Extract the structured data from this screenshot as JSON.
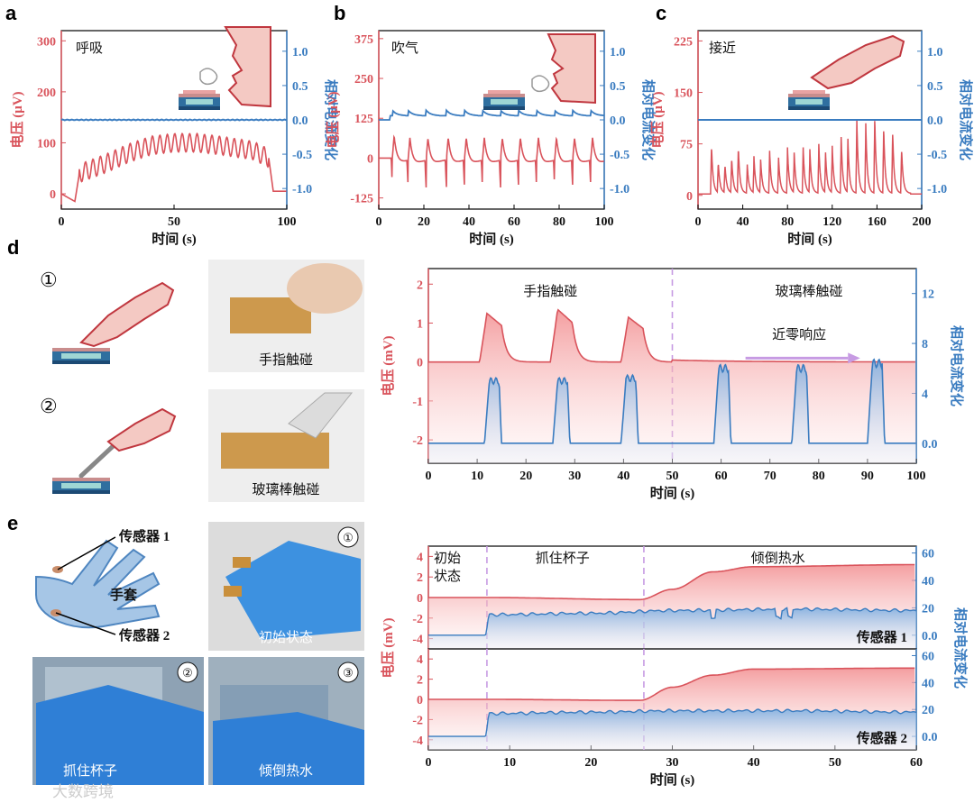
{
  "panels": {
    "a": {
      "letter": "a",
      "note": "呼吸"
    },
    "b": {
      "letter": "b",
      "note": "吹气"
    },
    "c": {
      "letter": "c",
      "note": "接近"
    },
    "d": {
      "letter": "d",
      "num1": "①",
      "num2": "②",
      "photo1_caption": "手指触碰",
      "photo2_caption": "玻璃棒触碰"
    },
    "e": {
      "letter": "e",
      "label_sensor1": "传感器 1",
      "label_glove": "手套",
      "label_sensor2": "传感器 2",
      "photo1_num": "①",
      "photo1_caption": "初始状态",
      "photo2_num": "②",
      "photo2_caption": "抓住杯子",
      "photo3_num": "③",
      "photo3_caption": "倾倒热水"
    },
    "watermark": "大数跨境"
  },
  "chart_data": [
    {
      "id": "a",
      "type": "line",
      "xlabel": "时间 (s)",
      "ylabel": "电压 (μV)",
      "y2label": "相对电流变化",
      "xlim": [
        0,
        100
      ],
      "ylim": [
        -30,
        320
      ],
      "y2lim": [
        -1.3,
        1.3
      ],
      "xticks": [
        0,
        50,
        100
      ],
      "yticks": [
        0,
        100,
        200,
        300
      ],
      "y2ticks": [
        1.0,
        0.5,
        0.0,
        -0.5,
        -1.0
      ],
      "series": [
        {
          "axis": "left",
          "color": "#d9535b",
          "description_points": [
            [
              0,
              0
            ],
            [
              6,
              -15
            ],
            [
              8,
              40
            ],
            [
              20,
              60
            ],
            [
              30,
              80
            ],
            [
              40,
              95
            ],
            [
              50,
              100
            ],
            [
              60,
              100
            ],
            [
              70,
              95
            ],
            [
              85,
              85
            ],
            [
              92,
              70
            ],
            [
              94,
              5
            ],
            [
              100,
              5
            ]
          ],
          "oscillation_period_s": 3.3,
          "oscillation_amplitude": 18
        },
        {
          "axis": "right",
          "color": "#3a7cc0",
          "constant_value": 0.0
        }
      ]
    },
    {
      "id": "b",
      "type": "line",
      "xlabel": "时间 (s)",
      "ylabel": "电压 (μV)",
      "y2label": "相对电流变化",
      "xlim": [
        0,
        100
      ],
      "ylim": [
        -160,
        400
      ],
      "y2lim": [
        -1.3,
        1.3
      ],
      "xticks": [
        0,
        20,
        40,
        60,
        80,
        100
      ],
      "yticks": [
        375,
        250,
        125,
        0,
        -125
      ],
      "y2ticks": [
        1.0,
        0.5,
        0.0,
        -0.5,
        -1.0
      ],
      "series": [
        {
          "axis": "left",
          "color": "#d9535b",
          "baseline": 0,
          "pulse_times": [
            6,
            13,
            21,
            30,
            38,
            46,
            54,
            62,
            70,
            78,
            86,
            94
          ],
          "pulse_peak": 70,
          "pulse_trough": -85
        },
        {
          "axis": "right",
          "color": "#3a7cc0",
          "baseline": 0.06,
          "pulse_amplitude": 0.08
        }
      ]
    },
    {
      "id": "c",
      "type": "line",
      "xlabel": "时间 (s)",
      "ylabel": "电压 (μV)",
      "y2label": "相对电流变化",
      "xlim": [
        0,
        200
      ],
      "ylim": [
        -20,
        240
      ],
      "y2lim": [
        -1.3,
        1.3
      ],
      "xticks": [
        0,
        40,
        80,
        120,
        160,
        200
      ],
      "yticks": [
        0,
        75,
        150,
        225
      ],
      "y2ticks": [
        1.0,
        0.5,
        0.0,
        -0.5,
        -1.0
      ],
      "series": [
        {
          "axis": "left",
          "color": "#d9535b",
          "baseline": 2,
          "peaks": [
            [
              12,
              65
            ],
            [
              18,
              38
            ],
            [
              24,
              35
            ],
            [
              30,
              45
            ],
            [
              36,
              60
            ],
            [
              44,
              35
            ],
            [
              50,
              45
            ],
            [
              56,
              40
            ],
            [
              64,
              55
            ],
            [
              72,
              45
            ],
            [
              80,
              60
            ],
            [
              86,
              50
            ],
            [
              94,
              60
            ],
            [
              100,
              55
            ],
            [
              108,
              65
            ],
            [
              114,
              50
            ],
            [
              120,
              60
            ],
            [
              128,
              75
            ],
            [
              134,
              70
            ],
            [
              142,
              100
            ],
            [
              150,
              95
            ],
            [
              158,
              105
            ],
            [
              166,
              90
            ],
            [
              174,
              85
            ],
            [
              182,
              60
            ]
          ]
        },
        {
          "axis": "right",
          "color": "#3a7cc0",
          "constant_value": 0.0
        }
      ]
    },
    {
      "id": "d",
      "type": "area",
      "xlabel": "时间 (s)",
      "ylabel": "电压 (mV)",
      "y2label": "相对电流变化",
      "xlim": [
        0,
        100
      ],
      "ylim": [
        -2.6,
        2.4
      ],
      "y2lim": [
        -1.6,
        14
      ],
      "xticks": [
        0,
        10,
        20,
        30,
        40,
        50,
        60,
        70,
        80,
        90,
        100
      ],
      "yticks": [
        2,
        1,
        0,
        -1,
        -2
      ],
      "y2ticks": [
        12,
        8,
        4,
        0
      ],
      "divider_x": 50,
      "annotations": {
        "left": "手指触碰",
        "right": "玻璃棒触碰",
        "arrow": "近零响应"
      },
      "series": [
        {
          "axis": "left",
          "color": "#d9535b",
          "baseline": 0.0,
          "pulses": [
            [
              10.5,
              1.25
            ],
            [
              25,
              1.35
            ],
            [
              39.5,
              1.15
            ]
          ],
          "tail": 0.05
        },
        {
          "axis": "right",
          "color": "#3a7cc0",
          "baseline": 0.0,
          "pulses": [
            [
              11.5,
              5.0
            ],
            [
              25.5,
              5.0
            ],
            [
              39.5,
              5.2
            ],
            [
              58.5,
              6.0
            ],
            [
              74.5,
              6.0
            ],
            [
              90,
              6.4
            ]
          ]
        }
      ]
    },
    {
      "id": "e1",
      "type": "area",
      "xlabel": "",
      "ylabel": "电压 (mV)",
      "y2label": "相对电流变化",
      "xlim": [
        0,
        60
      ],
      "ylim": [
        -5,
        5
      ],
      "y2lim": [
        -10,
        65
      ],
      "yticks": [
        4,
        2,
        0,
        -2,
        -4
      ],
      "y2ticks": [
        60,
        40,
        20,
        0
      ],
      "dividers": [
        7.2,
        26.5
      ],
      "labels": {
        "stage1a": "初始",
        "stage1b": "状态",
        "stage2": "抓住杯子",
        "stage3": "倾倒热水",
        "sensor": "传感器 1"
      },
      "series": [
        {
          "axis": "left",
          "color": "#d9535b",
          "points": [
            [
              0,
              0
            ],
            [
              7,
              0
            ],
            [
              26,
              -0.2
            ],
            [
              30,
              0.8
            ],
            [
              35,
              2.5
            ],
            [
              40,
              3.0
            ],
            [
              60,
              3.2
            ]
          ]
        },
        {
          "axis": "right",
          "color": "#3a7cc0",
          "points": [
            [
              0,
              0
            ],
            [
              7,
              0
            ],
            [
              7.5,
              15
            ],
            [
              20,
              16
            ],
            [
              30,
              18
            ],
            [
              45,
              19
            ],
            [
              60,
              18
            ]
          ]
        }
      ]
    },
    {
      "id": "e2",
      "type": "area",
      "xlabel": "时间 (s)",
      "ylabel": "电压 (mV)",
      "y2label": "相对电流变化",
      "xlim": [
        0,
        60
      ],
      "ylim": [
        -5,
        5
      ],
      "y2lim": [
        -10,
        65
      ],
      "xticks": [
        0,
        10,
        20,
        30,
        40,
        50,
        60
      ],
      "yticks": [
        4,
        2,
        0,
        -2,
        -4
      ],
      "y2ticks": [
        60,
        40,
        20,
        0
      ],
      "dividers": [
        7.2,
        26.5
      ],
      "labels": {
        "sensor": "传感器 2"
      },
      "series": [
        {
          "axis": "left",
          "color": "#d9535b",
          "points": [
            [
              0,
              0
            ],
            [
              7,
              0
            ],
            [
              26,
              -0.1
            ],
            [
              30,
              1.2
            ],
            [
              35,
              2.4
            ],
            [
              40,
              3.0
            ],
            [
              60,
              3.1
            ]
          ]
        },
        {
          "axis": "right",
          "color": "#3a7cc0",
          "points": [
            [
              0,
              0
            ],
            [
              7,
              0
            ],
            [
              7.5,
              17
            ],
            [
              20,
              18
            ],
            [
              30,
              19
            ],
            [
              45,
              19
            ],
            [
              60,
              18
            ]
          ]
        }
      ]
    }
  ]
}
